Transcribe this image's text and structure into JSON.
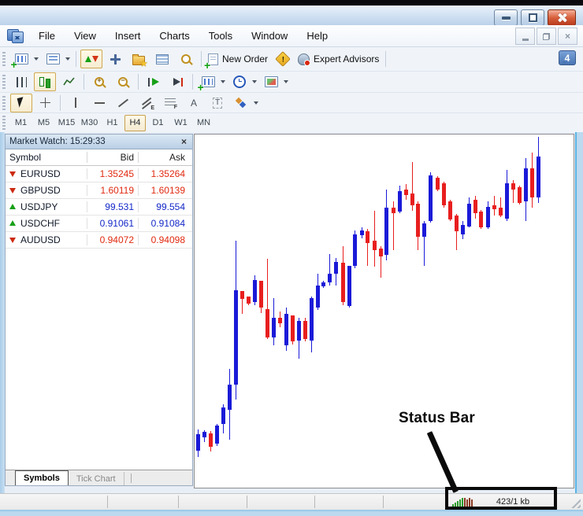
{
  "glyphs": {
    "plus": "+",
    "minus": "−",
    "warn": "!",
    "close": "×",
    "letter_a": "A",
    "letter_t": "T",
    "sub_e": "E",
    "sub_f": "F"
  },
  "menu": {
    "items": [
      "File",
      "View",
      "Insert",
      "Charts",
      "Tools",
      "Window",
      "Help"
    ]
  },
  "toolbar": {
    "new_order_label": "New Order",
    "expert_advisors_label": "Expert Advisors",
    "notification_count": "4"
  },
  "timeframes": {
    "items": [
      "M1",
      "M5",
      "M15",
      "M30",
      "H1",
      "H4",
      "D1",
      "W1",
      "MN"
    ],
    "active": "H4"
  },
  "market_watch": {
    "title": "Market Watch: 15:29:33",
    "columns": {
      "symbol": "Symbol",
      "bid": "Bid",
      "ask": "Ask"
    },
    "rows": [
      {
        "symbol": "EURUSD",
        "bid": "1.35245",
        "ask": "1.35264",
        "direction": "down",
        "tone": "red"
      },
      {
        "symbol": "GBPUSD",
        "bid": "1.60119",
        "ask": "1.60139",
        "direction": "down",
        "tone": "red"
      },
      {
        "symbol": "USDJPY",
        "bid": "99.531",
        "ask": "99.554",
        "direction": "up",
        "tone": "blue"
      },
      {
        "symbol": "USDCHF",
        "bid": "0.91061",
        "ask": "0.91084",
        "direction": "up",
        "tone": "blue"
      },
      {
        "symbol": "AUDUSD",
        "bid": "0.94072",
        "ask": "0.94098",
        "direction": "down",
        "tone": "red"
      }
    ]
  },
  "tabs": {
    "items": [
      "Symbols",
      "Tick Chart"
    ],
    "active": "Symbols"
  },
  "annotation": {
    "label": "Status Bar"
  },
  "status_bar": {
    "traffic": "423/1 kb"
  },
  "colors": {
    "red_value": "#e02a10",
    "blue_value": "#1428c8",
    "candle_up": "#1a1ad8",
    "candle_down": "#e81e1e"
  },
  "chart_data": {
    "type": "candlestick",
    "title": "H4 candlestick chart (no visible axis labels)",
    "note": "values are pixel coordinates within chart area [x, wickTop, bodyTop, bodyBottom, wickBottom, direction b=bull-blue r=bear-red]",
    "candles": [
      [
        2,
        375,
        381,
        402,
        410,
        "b"
      ],
      [
        10,
        376,
        378,
        385,
        391,
        "b"
      ],
      [
        18,
        377,
        380,
        397,
        403,
        "r"
      ],
      [
        26,
        368,
        370,
        393,
        396,
        "b"
      ],
      [
        34,
        343,
        347,
        368,
        380,
        "b"
      ],
      [
        42,
        298,
        318,
        350,
        388,
        "b"
      ],
      [
        50,
        135,
        198,
        318,
        337,
        "b"
      ],
      [
        58,
        199,
        199,
        209,
        228,
        "r"
      ],
      [
        66,
        206,
        206,
        215,
        217,
        "r"
      ],
      [
        74,
        179,
        185,
        213,
        217,
        "b"
      ],
      [
        82,
        186,
        186,
        220,
        227,
        "r"
      ],
      [
        90,
        158,
        222,
        258,
        260,
        "r"
      ],
      [
        98,
        208,
        233,
        258,
        268,
        "b"
      ],
      [
        106,
        225,
        233,
        240,
        245,
        "r"
      ],
      [
        114,
        220,
        228,
        268,
        275,
        "b"
      ],
      [
        122,
        230,
        230,
        263,
        267,
        "r"
      ],
      [
        130,
        233,
        237,
        262,
        285,
        "b"
      ],
      [
        138,
        233,
        237,
        260,
        263,
        "r"
      ],
      [
        146,
        206,
        208,
        262,
        277,
        "b"
      ],
      [
        154,
        177,
        192,
        220,
        223,
        "b"
      ],
      [
        161,
        186,
        188,
        193,
        195,
        "b"
      ],
      [
        169,
        152,
        177,
        188,
        192,
        "b"
      ],
      [
        177,
        157,
        162,
        177,
        192,
        "b"
      ],
      [
        186,
        142,
        163,
        213,
        217,
        "r"
      ],
      [
        194,
        167,
        167,
        218,
        220,
        "b"
      ],
      [
        201,
        122,
        127,
        167,
        170,
        "b"
      ],
      [
        210,
        118,
        122,
        128,
        132,
        "b"
      ],
      [
        217,
        120,
        123,
        138,
        167,
        "r"
      ],
      [
        226,
        97,
        135,
        147,
        168,
        "r"
      ],
      [
        234,
        142,
        145,
        155,
        182,
        "r"
      ],
      [
        241,
        70,
        93,
        153,
        160,
        "b"
      ],
      [
        250,
        85,
        93,
        100,
        147,
        "r"
      ],
      [
        258,
        65,
        72,
        98,
        100,
        "b"
      ],
      [
        266,
        63,
        70,
        77,
        83,
        "r"
      ],
      [
        274,
        35,
        75,
        90,
        97,
        "r"
      ],
      [
        281,
        85,
        88,
        130,
        147,
        "r"
      ],
      [
        289,
        110,
        113,
        130,
        167,
        "b"
      ],
      [
        297,
        48,
        52,
        110,
        112,
        "b"
      ],
      [
        306,
        53,
        55,
        70,
        72,
        "r"
      ],
      [
        314,
        60,
        62,
        90,
        93,
        "r"
      ],
      [
        322,
        83,
        85,
        108,
        110,
        "r"
      ],
      [
        330,
        101,
        103,
        123,
        147,
        "r"
      ],
      [
        338,
        110,
        115,
        127,
        133,
        "b"
      ],
      [
        346,
        80,
        88,
        117,
        118,
        "b"
      ],
      [
        354,
        78,
        83,
        100,
        107,
        "r"
      ],
      [
        361,
        96,
        98,
        118,
        120,
        "r"
      ],
      [
        370,
        85,
        92,
        118,
        120,
        "b"
      ],
      [
        378,
        78,
        90,
        95,
        103,
        "r"
      ],
      [
        386,
        80,
        93,
        103,
        105,
        "r"
      ],
      [
        394,
        45,
        62,
        107,
        110,
        "b"
      ],
      [
        402,
        58,
        62,
        70,
        87,
        "r"
      ],
      [
        410,
        65,
        67,
        87,
        89,
        "r"
      ],
      [
        418,
        30,
        43,
        85,
        110,
        "b"
      ],
      [
        426,
        23,
        43,
        80,
        93,
        "r"
      ],
      [
        434,
        3,
        28,
        80,
        87,
        "b"
      ]
    ]
  }
}
